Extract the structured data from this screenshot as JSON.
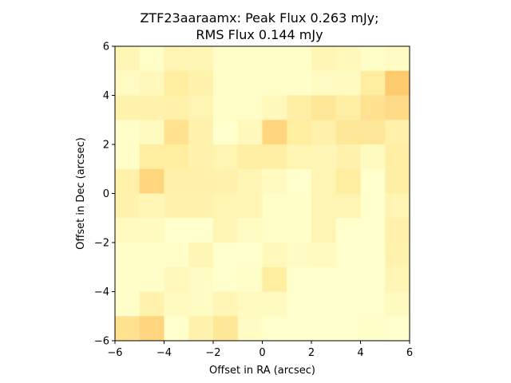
{
  "chart_data": {
    "type": "heatmap",
    "title_line1": "ZTF23aaraamx: Peak Flux 0.263 mJy;",
    "title_line2": "RMS Flux 0.144 mJy",
    "xlabel": "Offset in RA (arcsec)",
    "ylabel": "Offset in Dec (arcsec)",
    "xlim": [
      -6,
      6
    ],
    "ylim": [
      -6,
      6
    ],
    "xticks": [
      -6,
      -4,
      -2,
      0,
      2,
      4,
      6
    ],
    "yticks": [
      -6,
      -4,
      -2,
      0,
      2,
      4,
      6
    ],
    "xtick_labels": [
      "−6",
      "−4",
      "−2",
      "0",
      "2",
      "4",
      "6"
    ],
    "ytick_labels": [
      "−6",
      "−4",
      "−2",
      "0",
      "2",
      "4",
      "6"
    ],
    "grid": false,
    "colormap": {
      "low": "#ffffcc",
      "mid": "#ffeda0",
      "high": "#feb24c"
    },
    "cell_size_arcsec": 1,
    "rows_top_to_bottom": [
      [
        0.25,
        0.05,
        0.3,
        0.25,
        0.05,
        0.05,
        0.05,
        0.05,
        0.25,
        0.2,
        0.05,
        0.1
      ],
      [
        0.1,
        0.2,
        0.5,
        0.35,
        0.05,
        0.05,
        0.05,
        0.05,
        0.1,
        0.15,
        0.5,
        0.8
      ],
      [
        0.35,
        0.35,
        0.4,
        0.3,
        0.05,
        0.05,
        0.2,
        0.45,
        0.55,
        0.45,
        0.6,
        0.65
      ],
      [
        0.05,
        0.15,
        0.6,
        0.35,
        0.0,
        0.2,
        0.7,
        0.5,
        0.4,
        0.55,
        0.55,
        0.4
      ],
      [
        0.05,
        0.5,
        0.5,
        0.35,
        0.3,
        0.45,
        0.45,
        0.3,
        0.25,
        0.35,
        0.15,
        0.45
      ],
      [
        0.4,
        0.7,
        0.4,
        0.4,
        0.35,
        0.25,
        0.15,
        0.0,
        0.3,
        0.5,
        0.0,
        0.45
      ],
      [
        0.35,
        0.25,
        0.35,
        0.35,
        0.3,
        0.3,
        0.05,
        0.05,
        0.3,
        0.3,
        0.0,
        0.3
      ],
      [
        0.15,
        0.15,
        0.0,
        0.0,
        0.25,
        0.1,
        0.05,
        0.05,
        0.3,
        0.0,
        0.0,
        0.4
      ],
      [
        0.05,
        0.05,
        0.05,
        0.25,
        0.0,
        0.0,
        0.2,
        0.1,
        0.15,
        0.0,
        0.0,
        0.35
      ],
      [
        0.05,
        0.05,
        0.2,
        0.1,
        0.0,
        0.05,
        0.5,
        0.0,
        0.0,
        0.0,
        0.0,
        0.25
      ],
      [
        0.05,
        0.35,
        0.15,
        0.1,
        0.25,
        0.15,
        0.15,
        0.0,
        0.0,
        0.0,
        0.0,
        0.15
      ],
      [
        0.6,
        0.7,
        0.0,
        0.35,
        0.55,
        0.1,
        0.0,
        0.0,
        0.0,
        0.0,
        0.05,
        0.0
      ]
    ]
  }
}
